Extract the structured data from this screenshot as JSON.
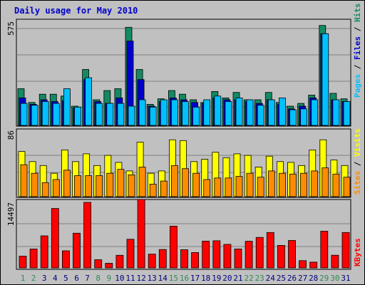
{
  "title": "Daily usage for May 2010",
  "panels": {
    "top": {
      "max_label": "575",
      "side_labels": {
        "pages": "Pages",
        "sep1": " / ",
        "files": "Files",
        "sep2": " / ",
        "hits": "Hits"
      }
    },
    "middle": {
      "max_label": "86",
      "side_labels": {
        "sites": "Sites",
        "sep": " / ",
        "visits": "Visits"
      }
    },
    "bottom": {
      "max_label": "14497",
      "side_labels": {
        "kbytes": "KBytes"
      }
    }
  },
  "colors": {
    "title": "#0000cc",
    "hits": "#138a64",
    "files": "#0000cc",
    "pages": "#00c0ff",
    "visits": "#ffff00",
    "sites": "#ff8c00",
    "kbytes": "#ff0000",
    "weekday_label": "#000080",
    "weekend_label": "#2e8b57",
    "grid": "#808080",
    "panel_bg": "#c0c0c0",
    "axis_text": "#000000"
  },
  "chart_data": {
    "type": "bar",
    "title": "Daily usage for May 2010",
    "categories": [
      "1",
      "2",
      "3",
      "4",
      "5",
      "6",
      "7",
      "8",
      "9",
      "10",
      "11",
      "12",
      "13",
      "14",
      "15",
      "16",
      "17",
      "18",
      "19",
      "20",
      "21",
      "22",
      "23",
      "24",
      "25",
      "26",
      "27",
      "28",
      "29",
      "30",
      "31"
    ],
    "weekend_days": [
      "1",
      "2",
      "8",
      "9",
      "15",
      "16",
      "22",
      "23",
      "29",
      "30"
    ],
    "panels": [
      {
        "name": "hits-files-pages",
        "ymax": 575,
        "series": [
          {
            "name": "Hits",
            "values": [
              200,
              125,
              170,
              170,
              160,
              105,
              305,
              140,
              190,
              200,
              535,
              305,
              115,
              145,
              190,
              170,
              140,
              125,
              185,
              150,
              180,
              140,
              140,
              180,
              125,
              105,
              120,
              165,
              545,
              175,
              145
            ]
          },
          {
            "name": "Files",
            "values": [
              150,
              115,
              140,
              130,
              135,
              95,
              250,
              130,
              120,
              150,
              460,
              250,
              105,
              130,
              150,
              140,
              125,
              120,
              150,
              140,
              140,
              130,
              120,
              140,
              115,
              90,
              105,
              150,
              500,
              140,
              130
            ]
          },
          {
            "name": "Pages",
            "values": [
              120,
              110,
              130,
              120,
              200,
              100,
              260,
              120,
              120,
              120,
              105,
              140,
              100,
              140,
              140,
              130,
              100,
              140,
              160,
              130,
              150,
              140,
              110,
              140,
              150,
              85,
              90,
              140,
              500,
              140,
              130
            ]
          }
        ]
      },
      {
        "name": "visits-sites",
        "ymax": 86,
        "series": [
          {
            "name": "Visits",
            "values": [
              58,
              45,
              40,
              30,
              60,
              45,
              55,
              40,
              53,
              44,
              33,
              70,
              30,
              33,
              73,
              72,
              45,
              48,
              57,
              50,
              55,
              53,
              38,
              52,
              45,
              44,
              40,
              60,
              73,
              47,
              40
            ]
          },
          {
            "name": "Sites",
            "values": [
              41,
              30,
              18,
              22,
              34,
              27,
              27,
              27,
              30,
              35,
              28,
              38,
              16,
              20,
              40,
              36,
              30,
              22,
              24,
              24,
              26,
              30,
              25,
              33,
              30,
              29,
              30,
              33,
              37,
              29,
              25
            ]
          }
        ]
      },
      {
        "name": "kbytes",
        "ymax": 14497,
        "series": [
          {
            "name": "KBytes",
            "values": [
              2520,
              4040,
              6860,
              12720,
              3670,
              7430,
              14040,
              1750,
              990,
              2700,
              6130,
              14660,
              2950,
              3930,
              8940,
              3890,
              3290,
              5740,
              5820,
              5040,
              4050,
              5710,
              6530,
              7590,
              4820,
              5870,
              1560,
              1240,
              7860,
              2710,
              7580
            ]
          }
        ]
      }
    ]
  }
}
